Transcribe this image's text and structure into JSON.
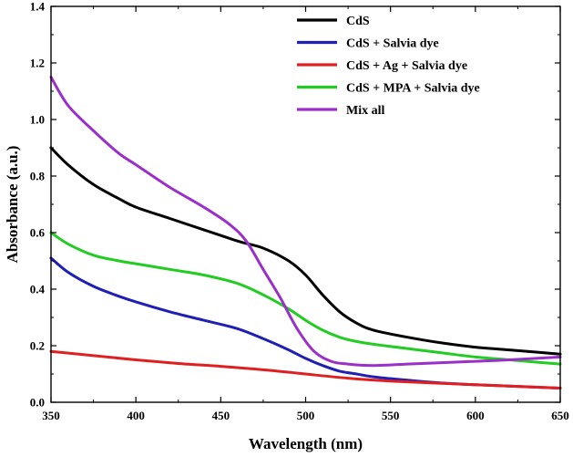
{
  "chart_data": {
    "type": "line",
    "title": "",
    "xlabel": "Wavelength (nm)",
    "ylabel": "Absorbance (a.u.)",
    "xlim": [
      350,
      650
    ],
    "ylim": [
      0.0,
      1.4
    ],
    "xticks": [
      350,
      400,
      450,
      500,
      550,
      600,
      650
    ],
    "xtick_labels": [
      "350",
      "400",
      "450",
      "500",
      "550",
      "600",
      "650"
    ],
    "yticks": [
      0.0,
      0.2,
      0.4,
      0.6,
      0.8,
      1.0,
      1.2,
      1.4
    ],
    "ytick_labels": [
      "0.0",
      "0.2",
      "0.4",
      "0.6",
      "0.8",
      "1.0",
      "1.2",
      "1.4"
    ],
    "grid": false,
    "legend_position": "top-right",
    "series": [
      {
        "name": "CdS",
        "color": "#000000",
        "x": [
          350,
          360,
          375,
          390,
          400,
          420,
          440,
          460,
          475,
          490,
          500,
          510,
          520,
          530,
          540,
          560,
          580,
          600,
          620,
          650
        ],
        "y": [
          0.9,
          0.84,
          0.77,
          0.72,
          0.69,
          0.65,
          0.61,
          0.57,
          0.545,
          0.5,
          0.45,
          0.38,
          0.32,
          0.28,
          0.255,
          0.23,
          0.21,
          0.195,
          0.185,
          0.17
        ]
      },
      {
        "name": "CdS + Salvia dye",
        "color": "#1f1fb4",
        "x": [
          350,
          360,
          375,
          390,
          400,
          420,
          440,
          460,
          475,
          490,
          500,
          510,
          520,
          530,
          540,
          560,
          580,
          600,
          620,
          650
        ],
        "y": [
          0.51,
          0.46,
          0.41,
          0.375,
          0.355,
          0.32,
          0.29,
          0.26,
          0.225,
          0.185,
          0.155,
          0.13,
          0.11,
          0.1,
          0.09,
          0.078,
          0.068,
          0.062,
          0.057,
          0.05
        ]
      },
      {
        "name": "CdS + Ag + Salvia dye",
        "color": "#e02020",
        "x": [
          350,
          375,
          400,
          425,
          450,
          475,
          500,
          525,
          550,
          575,
          600,
          625,
          650
        ],
        "y": [
          0.18,
          0.165,
          0.15,
          0.137,
          0.127,
          0.115,
          0.1,
          0.085,
          0.075,
          0.068,
          0.062,
          0.056,
          0.05
        ]
      },
      {
        "name": "CdS + MPA + Salvia dye",
        "color": "#22cc22",
        "x": [
          350,
          360,
          375,
          390,
          400,
          420,
          440,
          460,
          475,
          490,
          500,
          510,
          520,
          530,
          540,
          560,
          580,
          600,
          620,
          650
        ],
        "y": [
          0.6,
          0.56,
          0.52,
          0.5,
          0.49,
          0.47,
          0.45,
          0.42,
          0.38,
          0.33,
          0.29,
          0.255,
          0.23,
          0.215,
          0.205,
          0.19,
          0.175,
          0.16,
          0.15,
          0.135
        ]
      },
      {
        "name": "Mix all",
        "color": "#9b30c8",
        "x": [
          350,
          360,
          375,
          390,
          400,
          420,
          440,
          455,
          465,
          475,
          485,
          495,
          505,
          515,
          525,
          540,
          560,
          580,
          600,
          620,
          650
        ],
        "y": [
          1.15,
          1.05,
          0.96,
          0.88,
          0.84,
          0.76,
          0.69,
          0.63,
          0.57,
          0.47,
          0.37,
          0.26,
          0.18,
          0.145,
          0.135,
          0.13,
          0.135,
          0.14,
          0.145,
          0.15,
          0.16
        ]
      }
    ]
  }
}
